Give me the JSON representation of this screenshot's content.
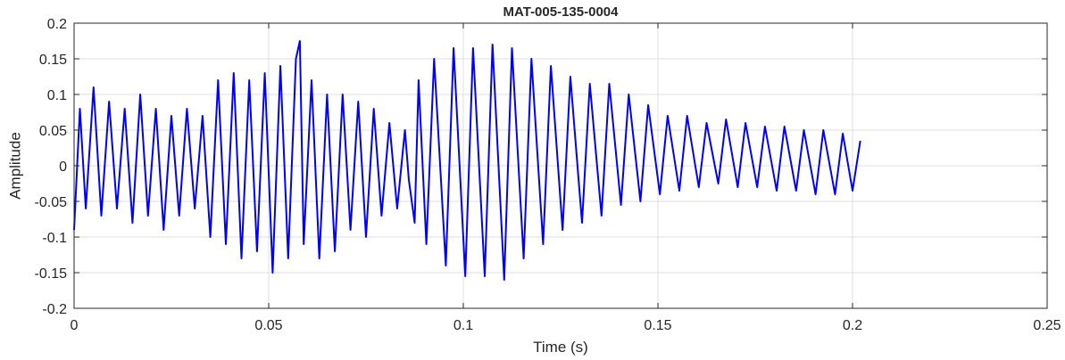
{
  "chart_data": {
    "type": "line",
    "title": "MAT-005-135-0004",
    "xlabel": "Time (s)",
    "ylabel": "Amplitude",
    "xlim": [
      0,
      0.25
    ],
    "ylim": [
      -0.2,
      0.2
    ],
    "xticks": [
      0,
      0.05,
      0.1,
      0.15,
      0.2,
      0.25
    ],
    "xtick_labels": [
      "0",
      "0.05",
      "0.1",
      "0.15",
      "0.2",
      "0.25"
    ],
    "yticks": [
      -0.2,
      -0.15,
      -0.1,
      -0.05,
      0,
      0.05,
      0.1,
      0.15,
      0.2
    ],
    "ytick_labels": [
      "-0.2",
      "-0.15",
      "-0.1",
      "-0.05",
      "0",
      "0.05",
      "0.1",
      "0.15",
      "0.2"
    ],
    "grid": true,
    "series": [
      {
        "color": "#0000ff",
        "x": [
          0,
          0.0015,
          0.003,
          0.005,
          0.007,
          0.009,
          0.011,
          0.013,
          0.015,
          0.017,
          0.019,
          0.021,
          0.023,
          0.025,
          0.027,
          0.029,
          0.031,
          0.033,
          0.035,
          0.037,
          0.039,
          0.041,
          0.043,
          0.045,
          0.047,
          0.049,
          0.051,
          0.053,
          0.055,
          0.057,
          0.058,
          0.059,
          0.061,
          0.063,
          0.065,
          0.067,
          0.069,
          0.071,
          0.073,
          0.075,
          0.077,
          0.079,
          0.081,
          0.083,
          0.085,
          0.086,
          0.0875,
          0.0885,
          0.0905,
          0.0925,
          0.0955,
          0.0975,
          0.1005,
          0.1025,
          0.1055,
          0.1075,
          0.1105,
          0.1125,
          0.1155,
          0.1175,
          0.1205,
          0.1225,
          0.1255,
          0.1275,
          0.1305,
          0.1325,
          0.1355,
          0.1375,
          0.1405,
          0.1425,
          0.1455,
          0.1475,
          0.1505,
          0.1525,
          0.1555,
          0.1575,
          0.1605,
          0.1625,
          0.1655,
          0.1675,
          0.1705,
          0.1725,
          0.1755,
          0.1775,
          0.1805,
          0.1825,
          0.1855,
          0.1875,
          0.1905,
          0.1925,
          0.1955,
          0.1975,
          0.2,
          0.202
        ],
        "y": [
          -0.09,
          0.08,
          -0.06,
          0.11,
          -0.07,
          0.09,
          -0.06,
          0.08,
          -0.08,
          0.1,
          -0.07,
          0.08,
          -0.09,
          0.07,
          -0.07,
          0.08,
          -0.06,
          0.07,
          -0.1,
          0.12,
          -0.11,
          0.13,
          -0.13,
          0.12,
          -0.12,
          0.13,
          -0.15,
          0.14,
          -0.13,
          0.15,
          0.175,
          -0.11,
          0.12,
          -0.13,
          0.1,
          -0.12,
          0.1,
          -0.09,
          0.09,
          -0.1,
          0.08,
          -0.07,
          0.06,
          -0.06,
          0.05,
          -0.02,
          -0.08,
          0.12,
          -0.11,
          0.15,
          -0.14,
          0.165,
          -0.155,
          0.165,
          -0.155,
          0.17,
          -0.16,
          0.165,
          -0.13,
          0.15,
          -0.11,
          0.14,
          -0.09,
          0.125,
          -0.08,
          0.115,
          -0.07,
          0.115,
          -0.055,
          0.1,
          -0.05,
          0.085,
          -0.04,
          0.07,
          -0.035,
          0.07,
          -0.03,
          0.06,
          -0.025,
          0.065,
          -0.03,
          0.06,
          -0.03,
          0.055,
          -0.035,
          0.055,
          -0.035,
          0.05,
          -0.04,
          0.05,
          -0.04,
          0.045,
          -0.035,
          0.035
        ]
      }
    ]
  }
}
